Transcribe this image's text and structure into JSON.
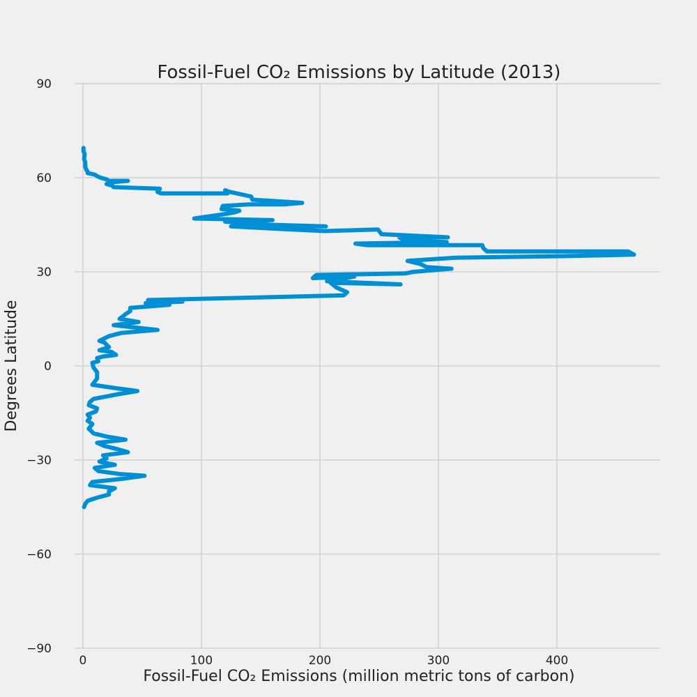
{
  "chart_data": {
    "type": "line",
    "orientation": "horizontal-values",
    "title": "Fossil-Fuel CO₂ Emissions by Latitude (2013)",
    "xlabel": "Fossil-Fuel CO₂ Emissions (million metric tons of carbon)",
    "ylabel": "Degrees Latitude",
    "xlim": [
      -7,
      487
    ],
    "ylim": [
      -90,
      90
    ],
    "xticks": [
      0,
      100,
      200,
      300,
      400
    ],
    "yticks": [
      -90,
      -60,
      -30,
      0,
      30,
      60,
      90
    ],
    "xtick_labels": [
      "0",
      "100",
      "200",
      "300",
      "400"
    ],
    "ytick_labels": [
      "−90",
      "−60",
      "−30",
      "0",
      "30",
      "60",
      "90"
    ],
    "grid": true,
    "series_color": "#008fd5",
    "series": [
      {
        "emissions": [
          0.5,
          0.5,
          1.5,
          1,
          2,
          2,
          3,
          4,
          4,
          10,
          12,
          15,
          20,
          22,
          38,
          22,
          20,
          25,
          26,
          65,
          63,
          66,
          122,
          120,
          124,
          142,
          143,
          185,
          170,
          140,
          118,
          117,
          132,
          128,
          121,
          94,
          160,
          120,
          158,
          205,
          125,
          176,
          204,
          249,
          252,
          308,
          267,
          271,
          307,
          230,
          240,
          337,
          338,
          341,
          460,
          465,
          405,
          314,
          274,
          285,
          290,
          311,
          279,
          272,
          197,
          194,
          229,
          206,
          268,
          209,
          214,
          220,
          223,
          220,
          55,
          84,
          53,
          73,
          40,
          40,
          36,
          31,
          47,
          26,
          63,
          32,
          22,
          14,
          18,
          22,
          14,
          24,
          28,
          17,
          12,
          13,
          8,
          9,
          12,
          12,
          8,
          26,
          46,
          30,
          9,
          6,
          5,
          12,
          11,
          4,
          6,
          4,
          8,
          5,
          9,
          20,
          36,
          12,
          18,
          29,
          38,
          17,
          20,
          14,
          27,
          10,
          13,
          32,
          52,
          33,
          8,
          6,
          27,
          22,
          22,
          12,
          4,
          2,
          1,
          1,
          0.5,
          0.5
        ],
        "latitudes": [
          69.5,
          68.5,
          67.5,
          66,
          65,
          63.5,
          62.5,
          62,
          61.5,
          61,
          60.5,
          60,
          59.5,
          59,
          59,
          58.5,
          58,
          57.5,
          57,
          56.5,
          55.5,
          55,
          55,
          56,
          55.5,
          54,
          53,
          52,
          51.5,
          51.5,
          51,
          50,
          49.5,
          49,
          48.5,
          47,
          46.5,
          46,
          45,
          44.5,
          44.5,
          43.5,
          43,
          43.5,
          42,
          41,
          41,
          40,
          39.5,
          39,
          38.5,
          38.5,
          37.5,
          36.5,
          36.5,
          35.5,
          35,
          34.5,
          33.5,
          32.5,
          31.5,
          31,
          30,
          29.5,
          29,
          28,
          28.5,
          27,
          26,
          26.5,
          25,
          24,
          23.5,
          22.5,
          21,
          20.5,
          20,
          19.5,
          18.5,
          17.5,
          16.5,
          15,
          14,
          13,
          11.5,
          10.5,
          9.5,
          8,
          7.5,
          6,
          5,
          4.5,
          3.5,
          3,
          2.5,
          1.5,
          1,
          -0.5,
          -2,
          -4,
          -6,
          -7,
          -8,
          -9,
          -10.5,
          -11.5,
          -12.5,
          -13.5,
          -14.5,
          -15.5,
          -16.5,
          -17.5,
          -18.5,
          -20,
          -21.5,
          -22.5,
          -23.5,
          -24.5,
          -25.5,
          -26.5,
          -27.5,
          -28.5,
          -29.5,
          -30.5,
          -31.5,
          -32.5,
          -33.5,
          -34.5,
          -35,
          -36,
          -37,
          -38,
          -39,
          -40,
          -41,
          -42,
          -43,
          -44,
          -45
        ]
      }
    ]
  }
}
